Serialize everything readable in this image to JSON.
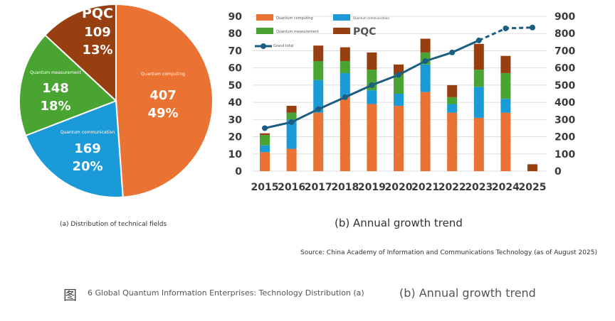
{
  "colors": {
    "computing": "#ea7333",
    "communication": "#1b9ad8",
    "measurement": "#4aa431",
    "pqc": "#983f12",
    "line": "#1a5e82",
    "axis_text": "#3a3a3a"
  },
  "chart_data": [
    {
      "type": "pie",
      "title": "(a) Distribution of technical fields",
      "slices": [
        {
          "name": "Quantum computing",
          "value": 407,
          "percent_label": "49%",
          "color_key": "computing"
        },
        {
          "name": "Quantum communication",
          "value": 169,
          "percent_label": "20%",
          "color_key": "communication"
        },
        {
          "name": "Quantum measurement",
          "value": 148,
          "percent_label": "18%",
          "color_key": "measurement"
        },
        {
          "name": "PQC",
          "value": 109,
          "percent_label": "13%",
          "color_key": "pqc"
        }
      ]
    },
    {
      "type": "bar",
      "stacked": true,
      "title": "(b) Annual growth trend",
      "categories": [
        "2015",
        "2016",
        "2017",
        "2018",
        "2019",
        "2020",
        "2021",
        "2022",
        "2023",
        "2024",
        "2025"
      ],
      "ylim_left": [
        0,
        90
      ],
      "yticks_left": [
        0,
        10,
        20,
        30,
        40,
        50,
        60,
        70,
        80,
        90
      ],
      "ylim_right": [
        0,
        900
      ],
      "yticks_right": [
        0,
        100,
        200,
        300,
        400,
        500,
        600,
        700,
        800,
        900
      ],
      "grid": true,
      "legend_position": "top-left",
      "series": [
        {
          "name": "Quantum computing",
          "color_key": "computing",
          "values": [
            11,
            13,
            34,
            43,
            39,
            38,
            46,
            34,
            31,
            34,
            0
          ]
        },
        {
          "name": "Quantum communication",
          "color_key": "communication",
          "values": [
            4,
            17,
            19,
            14,
            8,
            7,
            16,
            5,
            18,
            8,
            0
          ]
        },
        {
          "name": "Quantum measurement",
          "color_key": "measurement",
          "values": [
            6,
            4,
            11,
            7,
            12,
            11,
            7,
            4,
            10,
            15,
            0
          ]
        },
        {
          "name": "PQC",
          "color_key": "pqc",
          "values": [
            1,
            4,
            9,
            8,
            10,
            6,
            8,
            7,
            15,
            10,
            4
          ]
        }
      ],
      "line_series": {
        "name": "Grand total",
        "axis": "right",
        "values": [
          250,
          285,
          360,
          430,
          500,
          560,
          640,
          690,
          760,
          830,
          835
        ],
        "dashed_from_index": 8
      }
    }
  ],
  "captions": {
    "pie_caption": "(a) Distribution of technical fields",
    "bar_caption": "(b) Annual growth trend",
    "source": "Source: China Academy of Information and Communications Technology (as of August 2025)",
    "figure_char": "图",
    "figure_title": "6 Global Quantum Information Enterprises: Technology Distribution (a)",
    "figure_title_b": "(b) Annual growth trend"
  }
}
